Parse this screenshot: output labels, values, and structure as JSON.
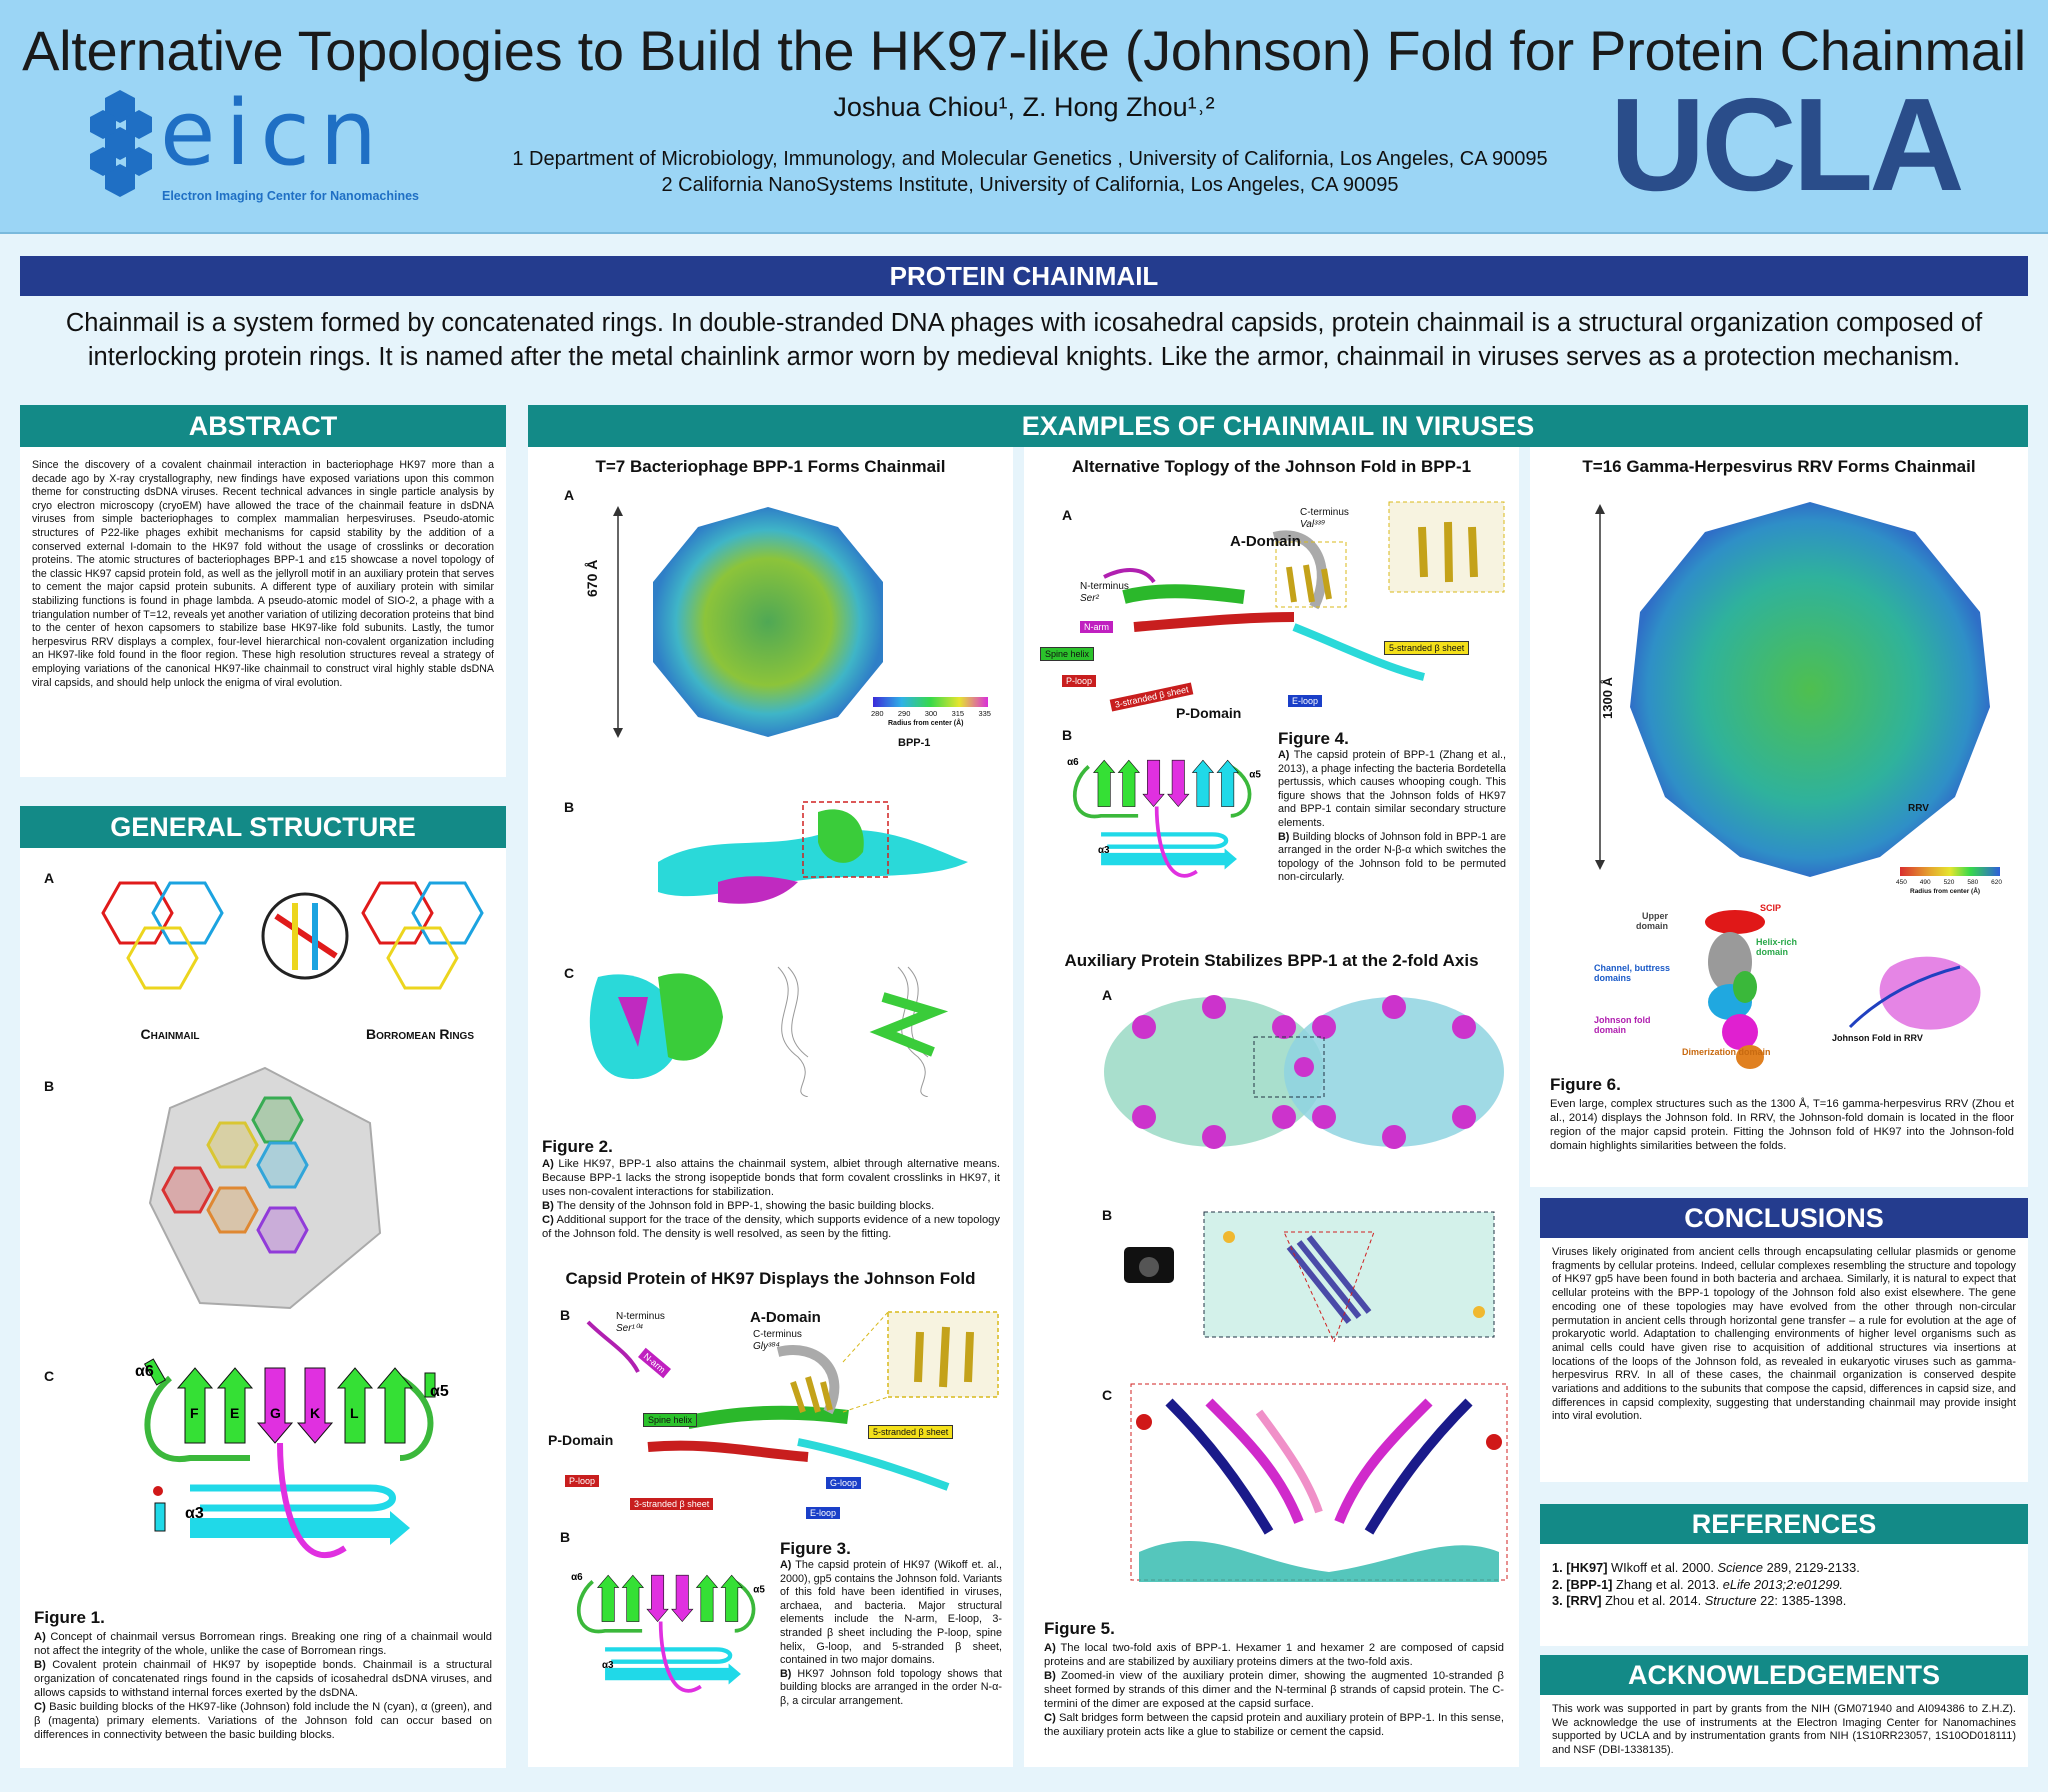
{
  "header": {
    "title": "Alternative Topologies to Build the HK97-like (Johnson) Fold for Protein Chainmail",
    "authors": "Joshua Chiou¹, Z. Hong Zhou¹˒²",
    "affiliation1": "1 Department of Microbiology, Immunology, and Molecular Genetics , University of California, Los Angeles, CA 90095",
    "affiliation2": "2 California NanoSystems Institute, University of California, Los Angeles, CA 90095",
    "eicn_logo_text": "eicn",
    "eicn_subtitle": "Electron Imaging Center for Nanomachines",
    "ucla_logo_text": "UCLA"
  },
  "chainmail": {
    "heading": "PROTEIN CHAINMAIL",
    "text": "Chainmail is a system formed by concatenated rings. In double-stranded DNA phages with icosahedral capsids, protein chainmail is a structural organization composed of interlocking protein rings. It is named after the metal chainlink armor worn by medieval knights. Like the armor, chainmail in viruses serves as a protection mechanism."
  },
  "abstract": {
    "heading": "ABSTRACT",
    "text": "Since the discovery of a covalent chainmail interaction in bacteriophage HK97 more than a decade ago by X-ray crystallography, new findings have exposed variations upon this common theme for constructing dsDNA viruses. Recent technical advances in single particle analysis by cryo electron microscopy (cryoEM) have allowed the trace of the chainmail feature in dsDNA viruses from simple bacteriophages to complex mammalian herpesviruses. Pseudo-atomic structures of P22-like phages exhibit mechanisms for capsid stability by the addition of a conserved external I-domain to the HK97 fold without the usage of crosslinks or decoration proteins. The atomic structures of bacteriophages BPP-1 and ε15 showcase a novel topology of the classic HK97 capsid protein fold, as well as the jellyroll motif in an auxiliary protein that serves to cement the major capsid protein subunits. A different type of auxiliary protein with similar stabilizing functions is found in phage lambda. A pseudo-atomic model of SIO-2, a phage with a triangulation number of T=12, reveals yet another variation of utilizing decoration proteins that bind to the center of hexon capsomers to stabilize base HK97-like fold subunits. Lastly, the tumor herpesvirus RRV displays a complex, four-level hierarchical non-covalent organization including an HK97-like fold found in the floor region. These high resolution structures reveal a strategy of employing variations of the canonical HK97-like chainmail to construct viral highly stable dsDNA viral capsids, and should help unlock the enigma of viral evolution."
  },
  "general": {
    "heading": "GENERAL STRUCTURE",
    "label_a": "A",
    "label_b": "B",
    "label_c": "C",
    "chainmail_label": "Chainmail",
    "borromean_label": "Borromean Rings",
    "fig_title": "Figure 1.",
    "cap_a_lbl": "A)",
    "cap_a": " Concept of chainmail versus Borromean rings.  Breaking one ring of a chainmail would not affect the integrity of the whole, unlike the case of Borromean rings.",
    "cap_b_lbl": "B)",
    "cap_b": " Covalent protein chainmail of HK97 by isopeptide bonds. Chainmail is a structural organization of concatenated rings found in the capsids of icosahedral dsDNA viruses, and allows capsids to withstand internal forces exerted by the dsDNA.",
    "cap_c_lbl": "C)",
    "cap_c": " Basic building blocks of the HK97-like (Johnson) fold include the N (cyan), α (green), and β (magenta) primary elements. Variations of the Johnson fold can occur based on differences in connectivity between the basic building blocks."
  },
  "examples": {
    "heading": "EXAMPLES OF CHAINMAIL IN VIRUSES"
  },
  "col2": {
    "title1": "T=7 Bacteriophage BPP-1 Forms Chainmail",
    "label_a": "A",
    "dimension": "670 Å",
    "colorbar_title": "BPP-1",
    "colorbar_ticks": [
      "280",
      "290",
      "300",
      "315",
      "335"
    ],
    "colorbar_unit": "Radius from center (Å)",
    "label_b": "B",
    "label_c": "C",
    "fig2_title": "Figure 2.",
    "fig2_a_lbl": "A)",
    "fig2_a": " Like HK97, BPP-1 also attains the chainmail system, albiet through alternative means. Because BPP-1 lacks the strong isopeptide bonds that form covalent crosslinks in HK97, it uses non-covalent interactions for stabilization.",
    "fig2_b_lbl": "B)",
    "fig2_b": " The density of the Johnson fold in BPP-1, showing the basic building blocks.",
    "fig2_c_lbl": "C)",
    "fig2_c": " Additional support for the trace of the density, which supports evidence of a new topology of the Johnson fold. The density is well resolved, as seen by the fitting.",
    "title2": "Capsid Protein of HK97 Displays the Johnson Fold",
    "label_b2": "B",
    "label_b3": "B",
    "fig3_title": "Figure 3.",
    "fig3_a_lbl": "A)",
    "fig3_a": " The capsid protein of HK97 (Wikoff et. al., 2000), gp5 contains the Johnson fold. Variants of this fold have been identified in viruses, archaea, and bacteria. Major structural elements include the N-arm, E-loop, 3-stranded β sheet including the P-loop, spine helix, G-loop, and 5-stranded β sheet, contained in two major domains.",
    "fig3_b_lbl": "B)",
    "fig3_b": " HK97 Johnson fold topology shows that building blocks are arranged in the order N-α-β, a circular arrangement.",
    "hk_labels": {
      "nterm": "N-terminus",
      "nterm_res": "Ser¹⁰⁴",
      "adomain": "A-Domain",
      "cterm": "C-terminus",
      "cterm_res": "Gly³⁸⁴",
      "pdomain": "P-Domain",
      "narm": "N-arm",
      "spine": "Spine helix",
      "gloop": "G-loop",
      "ploop": "P-loop",
      "sheet3": "3-stranded β sheet",
      "eloop": "E-loop",
      "sheet5": "5-stranded β sheet"
    }
  },
  "col3": {
    "title1": "Alternative Toplogy of the Johnson Fold in BPP-1",
    "label_a": "A",
    "label_b": "B",
    "bpp_labels": {
      "cterm": "C-terminus",
      "cterm_res": "Val³³⁹",
      "adomain": "A-Domain",
      "nterm": "N-terminus",
      "nterm_res": "Ser²",
      "narm": "N-arm",
      "spine": "Spine helix",
      "ploop": "P-loop",
      "sheet3": "3-stranded β sheet",
      "pdomain": "P-Domain",
      "eloop": "E-loop",
      "sheet5": "5-stranded β sheet"
    },
    "fig4_title": "Figure 4.",
    "fig4_a_lbl": "A)",
    "fig4_a": " The capsid protein of BPP-1 (Zhang et al., 2013), a phage infecting the bacteria Bordetella pertussis, which causes whooping cough. This figure shows that the Johnson folds of HK97 and BPP-1 contain similar secondary structure elements.",
    "fig4_b_lbl": "B)",
    "fig4_b": " Building blocks of Johnson fold in BPP-1 are arranged in the order N-β-α which switches the topology of the Johnson fold to be permuted non-circularly.",
    "title2": "Auxiliary Protein Stabilizes BPP-1 at the 2-fold Axis",
    "label_a2": "A",
    "label_b2": "B",
    "label_c2": "C",
    "fig5_title": "Figure 5.",
    "fig5_a_lbl": "A)",
    "fig5_a": " The local two-fold axis of BPP-1. Hexamer 1 and hexamer 2 are composed of capsid proteins and are stabilized by auxiliary proteins dimers at the two-fold axis.",
    "fig5_b_lbl": "B)",
    "fig5_b": " Zoomed-in view of the auxiliary protein dimer, showing the augmented 10-stranded β sheet formed by strands of this dimer and the N-terminal β strands of capsid protein. The C-termini of the dimer are exposed at the capsid surface.",
    "fig5_c_lbl": "C)",
    "fig5_c": " Salt bridges form between the capsid protein and auxiliary protein of BPP-1. In this sense, the auxiliary protein acts like a glue to stabilize or cement the capsid."
  },
  "col4": {
    "title": "T=16 Gamma-Herpesvirus RRV Forms Chainmail",
    "dimension": "1300 Å",
    "colorbar_title": "RRV",
    "colorbar_ticks": [
      "450",
      "490",
      "520",
      "580",
      "620"
    ],
    "colorbar_unit": "Radius from center (Å)",
    "scip": "SCIP",
    "upper": "Upper domain",
    "helix": "Helix-rich domain",
    "channel": "Channel, buttress domains",
    "johnson": "Johnson fold domain",
    "dimer": "Dimerization domain",
    "fold_rrv": "Johnson Fold in RRV",
    "fig6_title": "Figure 6.",
    "fig6": "Even large, complex structures such as the 1300 Å, T=16 gamma-herpesvirus RRV (Zhou et al., 2014) displays the Johnson fold. In RRV, the Johnson-fold domain is located in the floor region of the major capsid protein. Fitting the Johnson fold of HK97 into the Johnson-fold domain highlights similarities between the folds."
  },
  "conclusions": {
    "heading": "CONCLUSIONS",
    "text": "Viruses likely originated from ancient cells through encapsulating cellular plasmids or genome fragments by cellular proteins. Indeed, cellular complexes resembling the structure and topology of HK97 gp5 have been found in both bacteria and archaea. Similarly, it is natural to expect that cellular proteins with the BPP-1 topology of the Johnson fold also exist elsewhere. The gene encoding one of these topologies may have evolved from the other through non-circular permutation in ancient cells through horizontal gene transfer – a rule for evolution at the age of prokaryotic world. Adaptation to challenging environments of higher level organisms such as animal cells could have given rise to acquisition of additional structures via insertions at locations of the loops of the Johnson fold, as revealed in eukaryotic viruses such as gamma-herpesvirus RRV. In all of these cases, the chainmail organization is conserved despite variations and additions to the subunits that compose the capsid, differences in capsid size, and differences in capsid complexity, suggesting that understanding chainmail may provide insight into viral evolution."
  },
  "references": {
    "heading": "REFERENCES",
    "items": [
      {
        "num": "1. [HK97]",
        "text": " WIkoff et al. 2000. ",
        "journal": "Science",
        "rest": " 289, 2129-2133."
      },
      {
        "num": "2. [BPP-1]",
        "text": " Zhang et al. 2013. ",
        "journal": "eLife 2013;2:e01299.",
        "rest": ""
      },
      {
        "num": "3. [RRV]",
        "text": " Zhou et al. 2014. ",
        "journal": "Structure",
        "rest": " 22: 1385-1398."
      }
    ]
  },
  "acknowledgements": {
    "heading": "ACKNOWLEDGEMENTS",
    "text": "This work was supported in part by grants from the NIH (GM071940 and AI094386 to Z.H.Z). We acknowledge the use of instruments at the Electron Imaging Center for Nanomachines supported by UCLA and by instrumentation grants from NIH (1S10RR23057, 1S10OD018111) and NSF (DBI-1338135)."
  },
  "colors": {
    "header_bg": "#9bd5f5",
    "navy_banner": "#243c8e",
    "teal_banner": "#138a87",
    "ucla_blue": "#2a4d8a",
    "eicn_blue": "#1f6fc4"
  }
}
